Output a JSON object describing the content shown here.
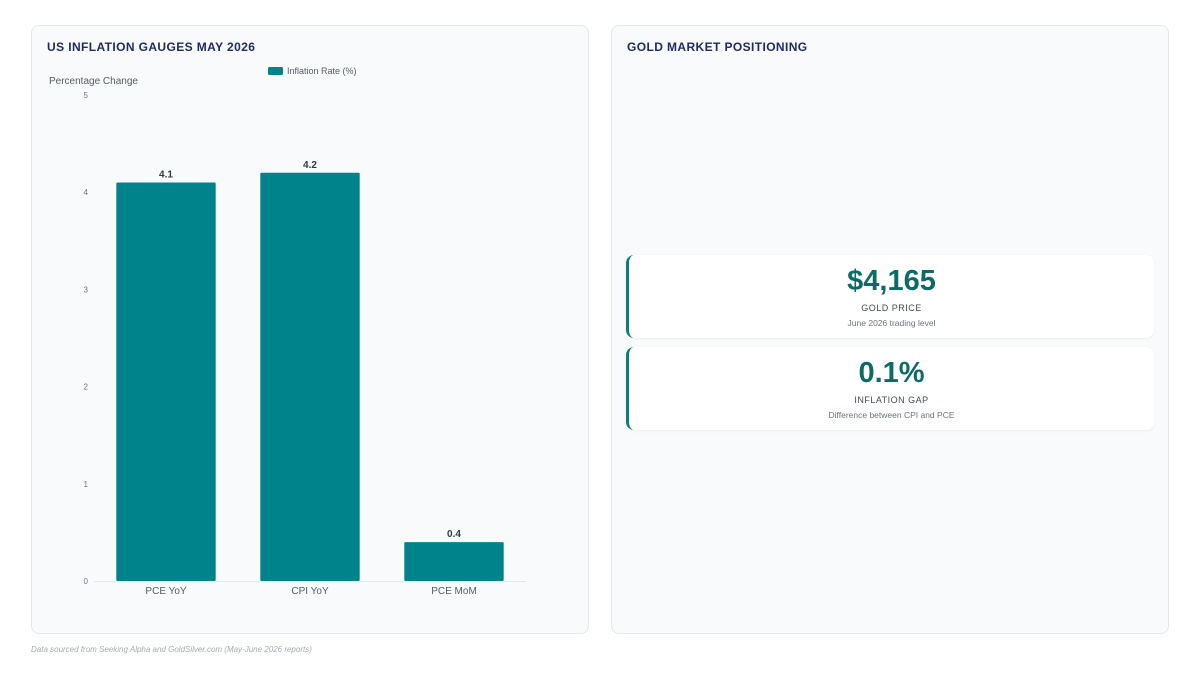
{
  "left_panel": {
    "title": "US INFLATION GAUGES MAY 2026"
  },
  "right_panel": {
    "title": "GOLD MARKET POSITIONING",
    "cards": [
      {
        "value": "$4,165",
        "label": "GOLD PRICE",
        "sub": "June 2026 trading level"
      },
      {
        "value": "0.1%",
        "label": "INFLATION GAP",
        "sub": "Difference between CPI and PCE"
      }
    ]
  },
  "footer": "Data sourced from Seeking Alpha and GoldSilver.com (May-June 2026 reports)",
  "chart_data": {
    "type": "bar",
    "title": "US INFLATION GAUGES MAY 2026",
    "categories": [
      "PCE YoY",
      "CPI YoY",
      "PCE MoM"
    ],
    "series": [
      {
        "name": "Inflation Rate (%)",
        "values": [
          4.1,
          4.2,
          0.4
        ]
      }
    ],
    "data_labels": [
      "4.1",
      "4.2",
      "0.4"
    ],
    "ylabel": "Percentage Change",
    "xlabel": "",
    "ylim": [
      0,
      5
    ],
    "yticks": [
      0,
      1,
      2,
      3,
      4,
      5
    ],
    "grid": false,
    "legend": "top",
    "bar_color": "#00838a"
  }
}
